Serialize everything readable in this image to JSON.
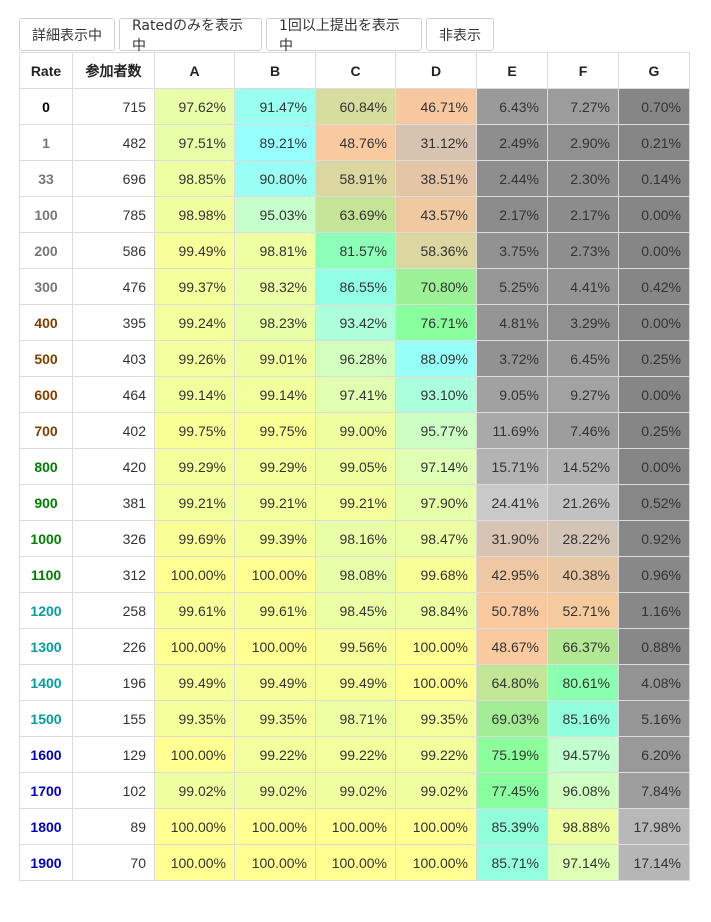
{
  "toolbar": {
    "buttons": [
      "詳細表示中",
      "Ratedのみを表示中",
      "1回以上提出を表示中",
      "非表示"
    ]
  },
  "table": {
    "headers": [
      "Rate",
      "参加者数",
      "A",
      "B",
      "C",
      "D",
      "E",
      "F",
      "G"
    ],
    "rows": [
      {
        "rate": "0",
        "color": "#000000",
        "count": "715",
        "cells": [
          {
            "v": "97.62%",
            "bg": "#e6ffa8"
          },
          {
            "v": "91.47%",
            "bg": "#99fff0"
          },
          {
            "v": "60.84%",
            "bg": "#d6dd9e"
          },
          {
            "v": "46.71%",
            "bg": "#f7c8a0"
          },
          {
            "v": "6.43%",
            "bg": "#9a9a9a"
          },
          {
            "v": "7.27%",
            "bg": "#9c9c9c"
          },
          {
            "v": "0.70%",
            "bg": "#868686"
          }
        ]
      },
      {
        "rate": "1",
        "color": "#777777",
        "count": "482",
        "cells": [
          {
            "v": "97.51%",
            "bg": "#e6ffa8"
          },
          {
            "v": "89.21%",
            "bg": "#98ffff"
          },
          {
            "v": "48.76%",
            "bg": "#f9c9a0"
          },
          {
            "v": "31.12%",
            "bg": "#d6c4b0"
          },
          {
            "v": "2.49%",
            "bg": "#8e8e8e"
          },
          {
            "v": "2.90%",
            "bg": "#909090"
          },
          {
            "v": "0.21%",
            "bg": "#868686"
          }
        ]
      },
      {
        "rate": "33",
        "color": "#777777",
        "count": "696",
        "cells": [
          {
            "v": "98.85%",
            "bg": "#edffa2"
          },
          {
            "v": "90.80%",
            "bg": "#99fff4"
          },
          {
            "v": "58.91%",
            "bg": "#dcd7a0"
          },
          {
            "v": "38.51%",
            "bg": "#e4c6a6"
          },
          {
            "v": "2.44%",
            "bg": "#8e8e8e"
          },
          {
            "v": "2.30%",
            "bg": "#8e8e8e"
          },
          {
            "v": "0.14%",
            "bg": "#868686"
          }
        ]
      },
      {
        "rate": "100",
        "color": "#777777",
        "count": "785",
        "cells": [
          {
            "v": "98.98%",
            "bg": "#efff9f"
          },
          {
            "v": "95.03%",
            "bg": "#c6ffcb"
          },
          {
            "v": "63.69%",
            "bg": "#c6e497"
          },
          {
            "v": "43.57%",
            "bg": "#efc9a0"
          },
          {
            "v": "2.17%",
            "bg": "#8c8c8c"
          },
          {
            "v": "2.17%",
            "bg": "#8c8c8c"
          },
          {
            "v": "0.00%",
            "bg": "#868686"
          }
        ]
      },
      {
        "rate": "200",
        "color": "#777777",
        "count": "586",
        "cells": [
          {
            "v": "99.49%",
            "bg": "#f6ff99"
          },
          {
            "v": "98.81%",
            "bg": "#eeffa2"
          },
          {
            "v": "81.57%",
            "bg": "#8dffb9"
          },
          {
            "v": "58.36%",
            "bg": "#dcd7a0"
          },
          {
            "v": "3.75%",
            "bg": "#929292"
          },
          {
            "v": "2.73%",
            "bg": "#8e8e8e"
          },
          {
            "v": "0.00%",
            "bg": "#868686"
          }
        ]
      },
      {
        "rate": "300",
        "color": "#777777",
        "count": "476",
        "cells": [
          {
            "v": "99.37%",
            "bg": "#f4ff9b"
          },
          {
            "v": "98.32%",
            "bg": "#eaffa6"
          },
          {
            "v": "86.55%",
            "bg": "#93ffe6"
          },
          {
            "v": "70.80%",
            "bg": "#9cf096"
          },
          {
            "v": "5.25%",
            "bg": "#969696"
          },
          {
            "v": "4.41%",
            "bg": "#949494"
          },
          {
            "v": "0.42%",
            "bg": "#868686"
          }
        ]
      },
      {
        "rate": "400",
        "color": "#804000",
        "count": "395",
        "cells": [
          {
            "v": "99.24%",
            "bg": "#f3ff9c"
          },
          {
            "v": "98.23%",
            "bg": "#e9ffa7"
          },
          {
            "v": "93.42%",
            "bg": "#adffdb"
          },
          {
            "v": "76.71%",
            "bg": "#8aff9e"
          },
          {
            "v": "4.81%",
            "bg": "#959595"
          },
          {
            "v": "3.29%",
            "bg": "#909090"
          },
          {
            "v": "0.00%",
            "bg": "#868686"
          }
        ]
      },
      {
        "rate": "500",
        "color": "#804000",
        "count": "403",
        "cells": [
          {
            "v": "99.26%",
            "bg": "#f3ff9c"
          },
          {
            "v": "99.01%",
            "bg": "#efff9f"
          },
          {
            "v": "96.28%",
            "bg": "#d2ffc0"
          },
          {
            "v": "88.09%",
            "bg": "#96fff8"
          },
          {
            "v": "3.72%",
            "bg": "#929292"
          },
          {
            "v": "6.45%",
            "bg": "#9a9a9a"
          },
          {
            "v": "0.25%",
            "bg": "#868686"
          }
        ]
      },
      {
        "rate": "600",
        "color": "#804000",
        "count": "464",
        "cells": [
          {
            "v": "99.14%",
            "bg": "#f1ff9d"
          },
          {
            "v": "99.14%",
            "bg": "#f1ff9d"
          },
          {
            "v": "97.41%",
            "bg": "#e1ffb0"
          },
          {
            "v": "93.10%",
            "bg": "#abffdd"
          },
          {
            "v": "9.05%",
            "bg": "#a1a1a1"
          },
          {
            "v": "9.27%",
            "bg": "#a2a2a2"
          },
          {
            "v": "0.00%",
            "bg": "#868686"
          }
        ]
      },
      {
        "rate": "700",
        "color": "#804000",
        "count": "402",
        "cells": [
          {
            "v": "99.75%",
            "bg": "#faff95"
          },
          {
            "v": "99.75%",
            "bg": "#faff95"
          },
          {
            "v": "99.00%",
            "bg": "#efff9f"
          },
          {
            "v": "95.77%",
            "bg": "#cdffc5"
          },
          {
            "v": "11.69%",
            "bg": "#a9a9a9"
          },
          {
            "v": "7.46%",
            "bg": "#9d9d9d"
          },
          {
            "v": "0.25%",
            "bg": "#868686"
          }
        ]
      },
      {
        "rate": "800",
        "color": "#008000",
        "count": "420",
        "cells": [
          {
            "v": "99.29%",
            "bg": "#f4ff9b"
          },
          {
            "v": "99.29%",
            "bg": "#f4ff9b"
          },
          {
            "v": "99.05%",
            "bg": "#efff9f"
          },
          {
            "v": "97.14%",
            "bg": "#deffb4"
          },
          {
            "v": "15.71%",
            "bg": "#b3b3b3"
          },
          {
            "v": "14.52%",
            "bg": "#b0b0b0"
          },
          {
            "v": "0.00%",
            "bg": "#868686"
          }
        ]
      },
      {
        "rate": "900",
        "color": "#008000",
        "count": "381",
        "cells": [
          {
            "v": "99.21%",
            "bg": "#f2ff9c"
          },
          {
            "v": "99.21%",
            "bg": "#f2ff9c"
          },
          {
            "v": "99.21%",
            "bg": "#f2ff9c"
          },
          {
            "v": "97.90%",
            "bg": "#e6ffab"
          },
          {
            "v": "24.41%",
            "bg": "#c9c9c9"
          },
          {
            "v": "21.26%",
            "bg": "#c1c1c1"
          },
          {
            "v": "0.52%",
            "bg": "#878787"
          }
        ]
      },
      {
        "rate": "1000",
        "color": "#008000",
        "count": "326",
        "cells": [
          {
            "v": "99.69%",
            "bg": "#f9ff96"
          },
          {
            "v": "99.39%",
            "bg": "#f5ff9a"
          },
          {
            "v": "98.16%",
            "bg": "#e8ffa8"
          },
          {
            "v": "98.47%",
            "bg": "#ebffa4"
          },
          {
            "v": "31.90%",
            "bg": "#d9c3b2"
          },
          {
            "v": "28.22%",
            "bg": "#d2c5b8"
          },
          {
            "v": "0.92%",
            "bg": "#888888"
          }
        ]
      },
      {
        "rate": "1100",
        "color": "#008000",
        "count": "312",
        "cells": [
          {
            "v": "100.00%",
            "bg": "#ffff92"
          },
          {
            "v": "100.00%",
            "bg": "#ffff92"
          },
          {
            "v": "98.08%",
            "bg": "#e7ffa9"
          },
          {
            "v": "99.68%",
            "bg": "#f9ff96"
          },
          {
            "v": "42.95%",
            "bg": "#edc8a2"
          },
          {
            "v": "40.38%",
            "bg": "#e8c7a4"
          },
          {
            "v": "0.96%",
            "bg": "#888888"
          }
        ]
      },
      {
        "rate": "1200",
        "color": "#00a0a0",
        "count": "258",
        "cells": [
          {
            "v": "99.61%",
            "bg": "#f8ff97"
          },
          {
            "v": "99.61%",
            "bg": "#f8ff97"
          },
          {
            "v": "98.45%",
            "bg": "#ebffa4"
          },
          {
            "v": "98.84%",
            "bg": "#eeffa1"
          },
          {
            "v": "50.78%",
            "bg": "#fac89f"
          },
          {
            "v": "52.71%",
            "bg": "#f5cb9e"
          },
          {
            "v": "1.16%",
            "bg": "#888888"
          }
        ]
      },
      {
        "rate": "1300",
        "color": "#00a0a0",
        "count": "226",
        "cells": [
          {
            "v": "100.00%",
            "bg": "#ffff92"
          },
          {
            "v": "100.00%",
            "bg": "#ffff92"
          },
          {
            "v": "99.56%",
            "bg": "#f7ff98"
          },
          {
            "v": "100.00%",
            "bg": "#ffff92"
          },
          {
            "v": "48.67%",
            "bg": "#f9c9a0"
          },
          {
            "v": "66.37%",
            "bg": "#b2e894"
          },
          {
            "v": "0.88%",
            "bg": "#888888"
          }
        ]
      },
      {
        "rate": "1400",
        "color": "#00a0a0",
        "count": "196",
        "cells": [
          {
            "v": "99.49%",
            "bg": "#f6ff99"
          },
          {
            "v": "99.49%",
            "bg": "#f6ff99"
          },
          {
            "v": "99.49%",
            "bg": "#f6ff99"
          },
          {
            "v": "100.00%",
            "bg": "#ffff92"
          },
          {
            "v": "64.80%",
            "bg": "#c2e596"
          },
          {
            "v": "80.61%",
            "bg": "#8bffb0"
          },
          {
            "v": "4.08%",
            "bg": "#939393"
          }
        ]
      },
      {
        "rate": "1500",
        "color": "#00a0a0",
        "count": "155",
        "cells": [
          {
            "v": "99.35%",
            "bg": "#f4ff9b"
          },
          {
            "v": "99.35%",
            "bg": "#f4ff9b"
          },
          {
            "v": "98.71%",
            "bg": "#edffa2"
          },
          {
            "v": "99.35%",
            "bg": "#f4ff9b"
          },
          {
            "v": "69.03%",
            "bg": "#a2ec95"
          },
          {
            "v": "85.16%",
            "bg": "#92ffdc"
          },
          {
            "v": "5.16%",
            "bg": "#969696"
          }
        ]
      },
      {
        "rate": "1600",
        "color": "#0000c0",
        "count": "129",
        "cells": [
          {
            "v": "100.00%",
            "bg": "#ffff92"
          },
          {
            "v": "99.22%",
            "bg": "#f2ff9c"
          },
          {
            "v": "99.22%",
            "bg": "#f2ff9c"
          },
          {
            "v": "99.22%",
            "bg": "#f2ff9c"
          },
          {
            "v": "75.19%",
            "bg": "#8cff9c"
          },
          {
            "v": "94.57%",
            "bg": "#c1ffcf"
          },
          {
            "v": "6.20%",
            "bg": "#999999"
          }
        ]
      },
      {
        "rate": "1700",
        "color": "#0000c0",
        "count": "102",
        "cells": [
          {
            "v": "99.02%",
            "bg": "#efff9f"
          },
          {
            "v": "99.02%",
            "bg": "#efff9f"
          },
          {
            "v": "99.02%",
            "bg": "#efff9f"
          },
          {
            "v": "99.02%",
            "bg": "#efff9f"
          },
          {
            "v": "77.45%",
            "bg": "#89ffa0"
          },
          {
            "v": "96.08%",
            "bg": "#d0ffc2"
          },
          {
            "v": "7.84%",
            "bg": "#9e9e9e"
          }
        ]
      },
      {
        "rate": "1800",
        "color": "#0000c0",
        "count": "89",
        "cells": [
          {
            "v": "100.00%",
            "bg": "#ffff92"
          },
          {
            "v": "100.00%",
            "bg": "#ffff92"
          },
          {
            "v": "100.00%",
            "bg": "#ffff92"
          },
          {
            "v": "100.00%",
            "bg": "#ffff92"
          },
          {
            "v": "85.39%",
            "bg": "#92ffdb"
          },
          {
            "v": "98.88%",
            "bg": "#eeffa1"
          },
          {
            "v": "17.98%",
            "bg": "#b8b8b8"
          }
        ]
      },
      {
        "rate": "1900",
        "color": "#0000c0",
        "count": "70",
        "cells": [
          {
            "v": "100.00%",
            "bg": "#ffff92"
          },
          {
            "v": "100.00%",
            "bg": "#ffff92"
          },
          {
            "v": "100.00%",
            "bg": "#ffff92"
          },
          {
            "v": "100.00%",
            "bg": "#ffff92"
          },
          {
            "v": "85.71%",
            "bg": "#93ffe0"
          },
          {
            "v": "97.14%",
            "bg": "#deffb4"
          },
          {
            "v": "17.14%",
            "bg": "#b6b6b6"
          }
        ]
      }
    ]
  }
}
